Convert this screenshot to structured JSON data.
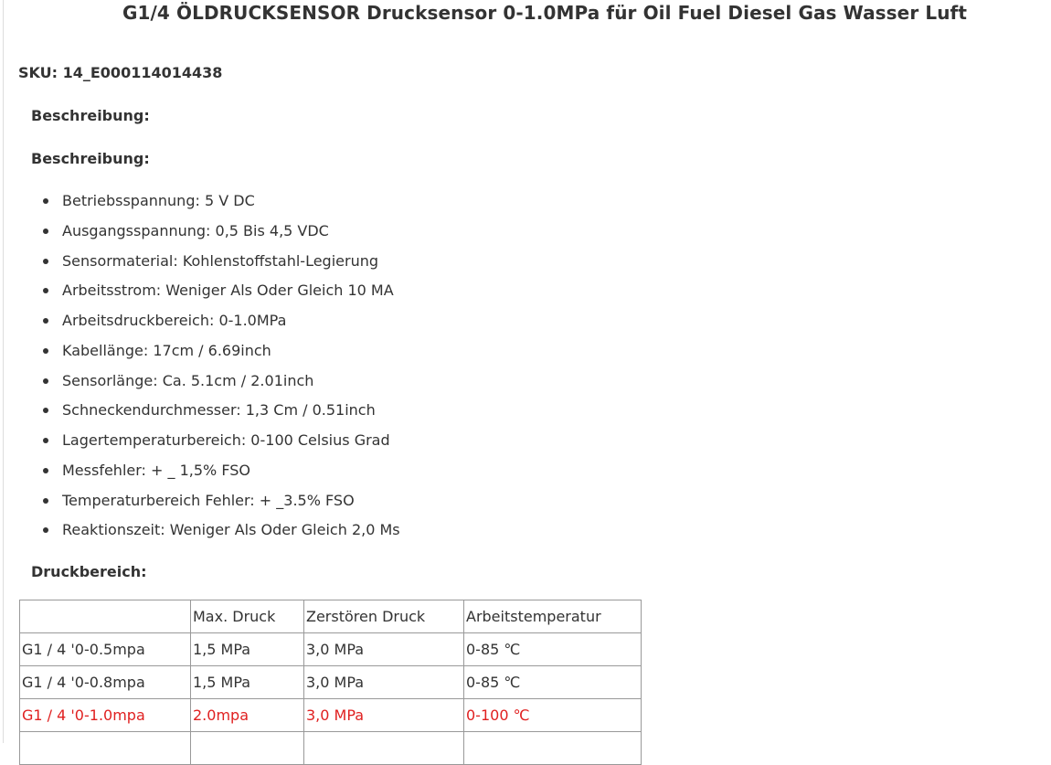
{
  "product": {
    "title": "G1/4 ÖLDRUCKSENSOR Drucksensor 0-1.0MPa für Oil Fuel Diesel Gas Wasser Luft",
    "sku": "SKU: 14_E000114014438"
  },
  "sections": {
    "description_heading_1": "Beschreibung:",
    "description_heading_2": "Beschreibung:",
    "pressure_heading": "Druckbereich:"
  },
  "specs": [
    "Betriebsspannung: 5 V DC",
    "Ausgangsspannung: 0,5 Bis 4,5 VDC",
    "Sensormaterial: Kohlenstoffstahl-Legierung",
    "Arbeitsstrom: Weniger Als Oder Gleich 10 MA",
    "Arbeitsdruckbereich: 0-1.0MPa",
    "Kabellänge: 17cm / 6.69inch",
    "Sensorlänge: Ca. 5.1cm / 2.01inch",
    "Schneckendurchmesser: 1,3 Cm / 0.51inch",
    "Lagertemperaturbereich: 0-100 Celsius Grad",
    "Messfehler: + _ 1,5% FSO",
    "Temperaturbereich Fehler: + _3.5% FSO",
    "Reaktionszeit: Weniger Als Oder Gleich 2,0 Ms"
  ],
  "pressure_table": {
    "headers": [
      "",
      "Max. Druck",
      "Zerstören Druck",
      "Arbeitstemperatur"
    ],
    "rows": [
      [
        "G1 / 4 '0-0.5mpa",
        "1,5 MPa",
        "3,0 MPa",
        "0-85 ℃"
      ],
      [
        "G1 / 4 '0-0.8mpa",
        "1,5 MPa",
        "3,0 MPa",
        "0-85 ℃"
      ],
      [
        "G1 / 4 '0-1.0mpa",
        "2.0mpa",
        "3,0 MPa",
        "0-100 ℃"
      ],
      [
        "",
        "",
        "",
        ""
      ]
    ],
    "highlight_color": "#e02020"
  }
}
